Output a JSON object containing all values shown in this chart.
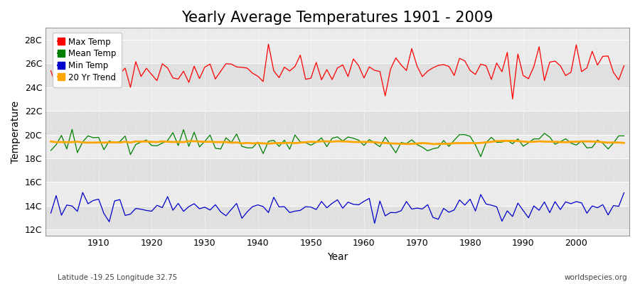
{
  "title": "Yearly Average Temperatures 1901 - 2009",
  "xlabel": "Year",
  "ylabel": "Temperature",
  "x_start": 1901,
  "x_end": 2009,
  "yticks": [
    12,
    14,
    16,
    18,
    20,
    22,
    24,
    26,
    28
  ],
  "ytick_labels": [
    "12C",
    "14C",
    "16C",
    "18C",
    "20C",
    "22C",
    "24C",
    "26C",
    "28C"
  ],
  "xticks": [
    1910,
    1920,
    1930,
    1940,
    1950,
    1960,
    1970,
    1980,
    1990,
    2000
  ],
  "ylim": [
    11.5,
    29.0
  ],
  "xlim": [
    1900,
    2010
  ],
  "max_temp_color": "#ff0000",
  "mean_temp_color": "#008000",
  "min_temp_color": "#0000cc",
  "trend_color": "#ffa500",
  "background_color": "#ffffff",
  "band_colors": [
    "#e0e0e0",
    "#ebebeb"
  ],
  "grid_color": "#ffffff",
  "title_fontsize": 15,
  "axis_label_fontsize": 10,
  "tick_fontsize": 9,
  "footer_left": "Latitude -19.25 Longitude 32.75",
  "footer_right": "worldspecies.org",
  "legend_labels": [
    "Max Temp",
    "Mean Temp",
    "Min Temp",
    "20 Yr Trend"
  ],
  "legend_colors": [
    "#ff0000",
    "#008000",
    "#0000cc",
    "#ffa500"
  ],
  "max_mean": 25.2,
  "max_std": 0.7,
  "mean_mean": 19.3,
  "mean_std": 0.45,
  "min_mean": 13.8,
  "min_std": 0.45
}
